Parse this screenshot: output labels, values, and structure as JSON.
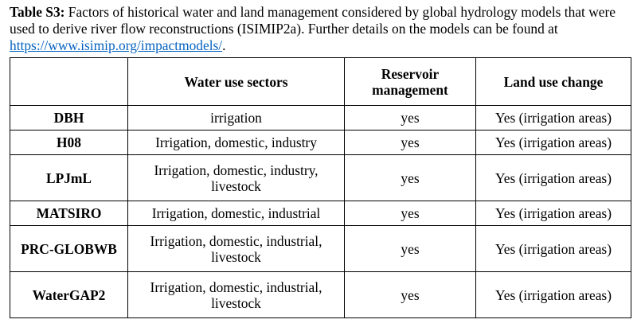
{
  "caption": {
    "label": "Table S3:",
    "text": " Factors of historical water and land management considered by global hydrology models that were used to derive river flow reconstructions (ISIMIP2a). Further details on the models can be found at ",
    "link": "https://www.isimip.org/impactmodels/",
    "end": "."
  },
  "table": {
    "headers": [
      "",
      "Water use sectors",
      "Reservoir management",
      "Land use change"
    ],
    "rows": [
      {
        "model": "DBH",
        "water_use": "irrigation",
        "reservoir": "yes",
        "land_use": "Yes (irrigation areas)"
      },
      {
        "model": "H08",
        "water_use": "Irrigation, domestic, industry",
        "reservoir": "yes",
        "land_use": "Yes (irrigation areas)"
      },
      {
        "model": "LPJmL",
        "water_use": "Irrigation, domestic, industry, livestock",
        "reservoir": "yes",
        "land_use": "Yes (irrigation areas)"
      },
      {
        "model": "MATSIRO",
        "water_use": "Irrigation, domestic, industrial",
        "reservoir": "yes",
        "land_use": "Yes (irrigation areas)"
      },
      {
        "model": "PRC-GLOBWB",
        "water_use": "Irrigation, domestic, industrial, livestock",
        "reservoir": "yes",
        "land_use": "Yes (irrigation areas)"
      },
      {
        "model": "WaterGAP2",
        "water_use": "Irrigation, domestic, industrial, livestock",
        "reservoir": "yes",
        "land_use": "Yes (irrigation areas)"
      }
    ]
  }
}
